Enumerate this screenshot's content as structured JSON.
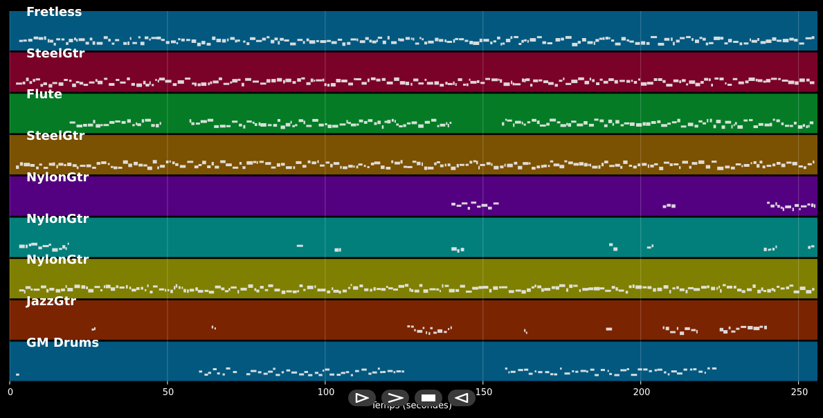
{
  "tracks": [
    {
      "name": "Fretless",
      "color": "#03587f"
    },
    {
      "name": "SteelGtr",
      "color": "#7a0128"
    },
    {
      "name": "Flute",
      "color": "#057b25"
    },
    {
      "name": "SteelGtr",
      "color": "#7b5102"
    },
    {
      "name": "NylonGtr",
      "color": "#540181"
    },
    {
      "name": "NylonGtr",
      "color": "#027f7b"
    },
    {
      "name": "NylonGtr",
      "color": "#7f7f02"
    },
    {
      "name": "JazzGtr",
      "color": "#7b2402"
    },
    {
      "name": "GM Drums",
      "color": "#03587f"
    }
  ],
  "axis": {
    "xlabel": "Temps (secondes)",
    "xmin": 0,
    "xmax": 256,
    "ticks": [
      "0",
      "50",
      "100",
      "150",
      "200",
      "250"
    ]
  },
  "transport": {
    "buttons": [
      {
        "name": "play-outline-icon"
      },
      {
        "name": "forward-chevron-icon"
      },
      {
        "name": "stop-icon"
      },
      {
        "name": "rewind-icon"
      }
    ]
  }
}
